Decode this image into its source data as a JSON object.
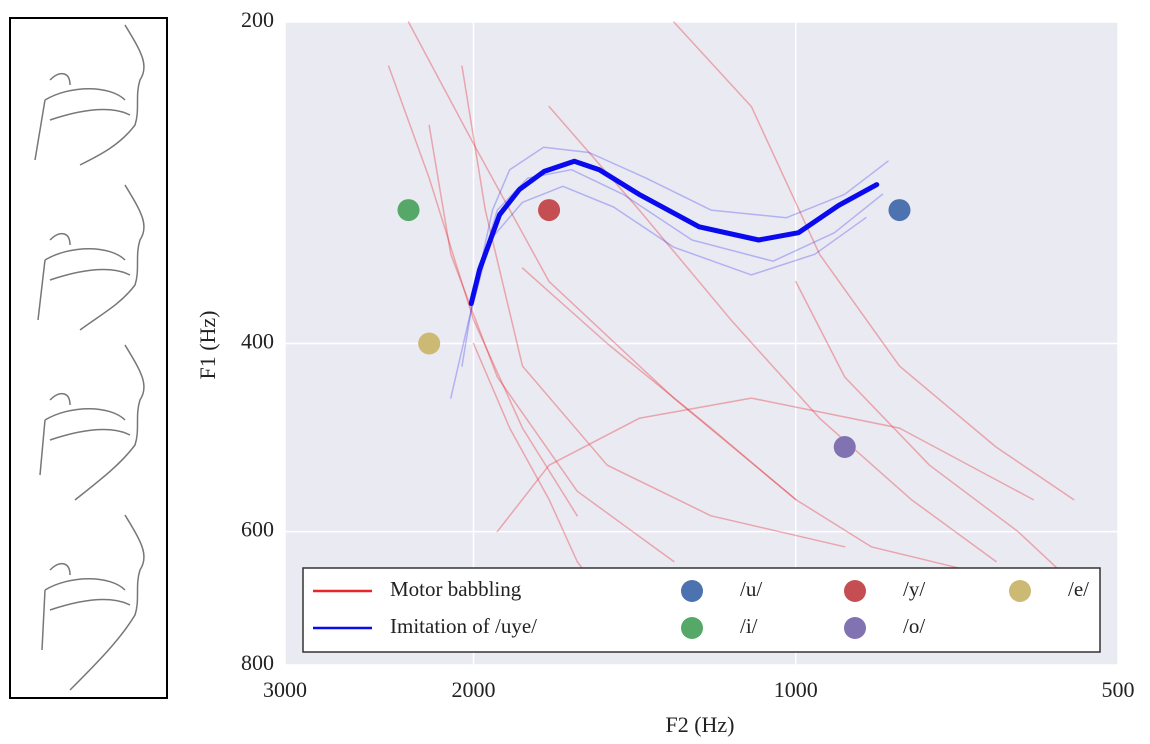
{
  "chart_data": {
    "type": "line",
    "xlabel": "F2 (Hz)",
    "ylabel": "F1 (Hz)",
    "xscale": "log",
    "yscale": "log",
    "x_inverted": true,
    "y_inverted": true,
    "xlim": [
      500,
      3000
    ],
    "ylim": [
      200,
      800
    ],
    "xticks": [
      3000,
      2000,
      1000,
      500
    ],
    "yticks": [
      200,
      400,
      600,
      800
    ],
    "grid": true,
    "legend": "lower center",
    "series": [
      {
        "name": "Motor babbling",
        "color": "#e8262a",
        "traces": [
          {
            "x": [
              2050,
              1950,
              1800,
              1500,
              1200,
              900
            ],
            "y": [
              220,
              300,
              420,
              520,
              580,
              620
            ]
          },
          {
            "x": [
              2200,
              2100,
              1900,
              1600,
              1300
            ],
            "y": [
              250,
              330,
              430,
              550,
              640
            ]
          },
          {
            "x": [
              1900,
              1700,
              1400,
              1100,
              800,
              600
            ],
            "y": [
              600,
              520,
              470,
              450,
              480,
              560
            ]
          },
          {
            "x": [
              2300,
              2000,
              1700,
              1300,
              1000
            ],
            "y": [
              200,
              260,
              350,
              450,
              560
            ]
          },
          {
            "x": [
              1800,
              1500,
              1200,
              1000,
              850,
              700
            ],
            "y": [
              340,
              400,
              480,
              560,
              620,
              650
            ]
          },
          {
            "x": [
              2000,
              1850,
              1700,
              1600,
              1500
            ],
            "y": [
              400,
              480,
              560,
              640,
              700
            ]
          },
          {
            "x": [
              1300,
              1100,
              950,
              800,
              650,
              550
            ],
            "y": [
              200,
              240,
              330,
              420,
              500,
              560
            ]
          },
          {
            "x": [
              2400,
              2200,
              2000,
              1800,
              1600
            ],
            "y": [
              220,
              280,
              380,
              480,
              580
            ]
          },
          {
            "x": [
              1000,
              900,
              750,
              620,
              560
            ],
            "y": [
              350,
              430,
              520,
              600,
              660
            ]
          },
          {
            "x": [
              1700,
              1400,
              1150,
              950,
              780,
              650
            ],
            "y": [
              240,
              300,
              380,
              470,
              560,
              640
            ]
          }
        ]
      },
      {
        "name": "Imitation of /uye/",
        "color": "#0a0aef",
        "x": [
          2010,
          1974,
          1891,
          1812,
          1718,
          1610,
          1526,
          1401,
          1231,
          1083,
          994,
          912,
          840
        ],
        "y": [
          367,
          341,
          303,
          287,
          276,
          270,
          275,
          290,
          311,
          320,
          315,
          297,
          284
        ],
        "traces": [
          {
            "x": [
              2050,
              1990,
              1900,
              1780,
              1620,
              1450,
              1250,
              1050,
              920,
              830
            ],
            "y": [
              420,
              350,
              300,
              280,
              275,
              290,
              320,
              335,
              315,
              290
            ]
          },
          {
            "x": [
              1960,
              1920,
              1850,
              1720,
              1560,
              1380,
              1200,
              1020,
              900,
              820
            ],
            "y": [
              330,
              300,
              275,
              262,
              265,
              280,
              300,
              305,
              290,
              270
            ]
          },
          {
            "x": [
              2100,
              2020,
              1930,
              1800,
              1650,
              1480,
              1300,
              1100,
              960,
              860
            ],
            "y": [
              450,
              380,
              320,
              295,
              285,
              298,
              325,
              345,
              330,
              305
            ]
          }
        ]
      }
    ],
    "points": [
      {
        "name": "/u/",
        "color": "#4c72b0",
        "x": 800,
        "y": 300
      },
      {
        "name": "/y/",
        "color": "#c44e52",
        "x": 1700,
        "y": 300
      },
      {
        "name": "/e/",
        "color": "#ccb974",
        "x": 2200,
        "y": 400
      },
      {
        "name": "/i/",
        "color": "#55a868",
        "x": 2300,
        "y": 300
      },
      {
        "name": "/o/",
        "color": "#8172b2",
        "x": 900,
        "y": 500
      }
    ]
  }
}
